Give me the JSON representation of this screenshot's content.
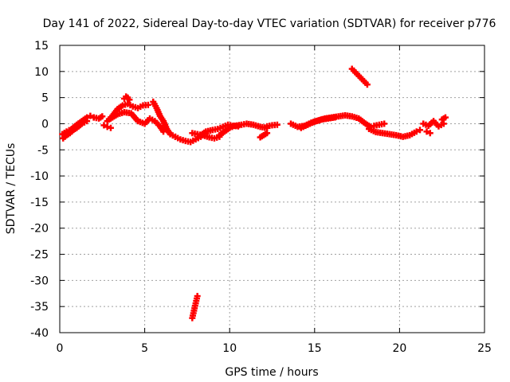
{
  "chart_data": {
    "type": "scatter",
    "title": "Day 141 of 2022, Sidereal Day-to-day VTEC variation (SDTVAR) for receiver p776",
    "xlabel": "GPS time / hours",
    "ylabel": "SDTVAR / TECUs",
    "xlim": [
      0,
      25
    ],
    "ylim": [
      -40,
      15
    ],
    "xticks": [
      0,
      5,
      10,
      15,
      20,
      25
    ],
    "yticks": [
      -40,
      -35,
      -30,
      -25,
      -20,
      -15,
      -10,
      -5,
      0,
      5,
      10,
      15
    ],
    "grid": true,
    "series": [
      {
        "name": "SDTVAR",
        "color": "#ff0000",
        "marker": "plus",
        "segments": [
          {
            "x": [
              0.15,
              0.4,
              0.7,
              1.0,
              1.3,
              1.6,
              1.8,
              2.0
            ],
            "y": [
              -2.0,
              -1.5,
              -1.0,
              -0.2,
              0.5,
              1.2,
              1.5,
              1.2
            ]
          },
          {
            "x": [
              0.2,
              0.4,
              0.6,
              0.8,
              1.0,
              1.3,
              1.6
            ],
            "y": [
              -2.8,
              -2.2,
              -1.8,
              -1.2,
              -0.8,
              0.0,
              0.5
            ]
          },
          {
            "x": [
              2.0,
              2.3,
              2.5
            ],
            "y": [
              1.2,
              1.0,
              1.4
            ]
          },
          {
            "x": [
              2.6,
              2.8,
              3.0
            ],
            "y": [
              -0.3,
              -0.6,
              -0.8
            ]
          },
          {
            "x": [
              2.8,
              3.1,
              3.4,
              3.7,
              4.0,
              4.3,
              4.6,
              4.9,
              5.2
            ],
            "y": [
              0.5,
              1.5,
              2.8,
              3.5,
              3.8,
              3.3,
              3.0,
              3.5,
              3.6
            ]
          },
          {
            "x": [
              3.0,
              3.4,
              3.8,
              4.2,
              4.6,
              5.0,
              5.3,
              5.6,
              5.9,
              6.1
            ],
            "y": [
              1.0,
              1.8,
              2.2,
              2.0,
              0.5,
              0.0,
              1.0,
              0.5,
              -0.5,
              -1.5
            ]
          },
          {
            "x": [
              3.8,
              3.9,
              4.0,
              4.1
            ],
            "y": [
              4.8,
              5.2,
              5.0,
              4.6
            ]
          },
          {
            "x": [
              5.5,
              5.7,
              5.9,
              6.1,
              6.3,
              6.5,
              6.8
            ],
            "y": [
              4.2,
              3.0,
              1.5,
              0.5,
              -1.0,
              -2.0,
              -2.5
            ]
          },
          {
            "x": [
              6.8,
              7.1,
              7.4,
              7.7,
              8.0,
              8.3
            ],
            "y": [
              -2.5,
              -3.0,
              -3.3,
              -3.5,
              -3.0,
              -2.5
            ]
          },
          {
            "x": [
              7.8,
              8.1,
              8.4,
              8.8,
              9.1,
              9.4
            ],
            "y": [
              -1.8,
              -2.0,
              -2.2,
              -2.6,
              -2.8,
              -2.5
            ]
          },
          {
            "x": [
              8.3,
              8.6,
              9.0,
              9.3,
              9.6,
              9.9,
              10.2,
              10.5
            ],
            "y": [
              -2.2,
              -1.5,
              -1.2,
              -1.0,
              -0.6,
              -0.2,
              -0.4,
              -0.5
            ]
          },
          {
            "x": [
              9.4,
              9.7,
              10.0,
              10.3,
              10.7,
              11.0,
              11.4,
              11.8,
              12.2
            ],
            "y": [
              -2.2,
              -1.5,
              -0.8,
              -0.4,
              -0.2,
              0.0,
              -0.2,
              -0.6,
              -0.8
            ]
          },
          {
            "x": [
              12.2,
              12.5,
              12.8
            ],
            "y": [
              -0.5,
              -0.3,
              -0.2
            ]
          },
          {
            "x": [
              11.8,
              12.0,
              12.2
            ],
            "y": [
              -2.6,
              -2.2,
              -1.8
            ]
          },
          {
            "x": [
              13.6,
              14.0,
              14.4,
              14.8,
              15.2,
              15.6,
              16.0,
              16.4,
              16.8,
              17.2,
              17.6,
              18.0,
              18.3
            ],
            "y": [
              0.0,
              -0.6,
              -0.4,
              0.2,
              0.6,
              1.0,
              1.2,
              1.4,
              1.6,
              1.4,
              1.0,
              0.0,
              -0.6
            ]
          },
          {
            "x": [
              14.2,
              14.6,
              15.0,
              15.4,
              15.8,
              16.2
            ],
            "y": [
              -0.8,
              -0.2,
              0.4,
              0.8,
              1.0,
              1.2
            ]
          },
          {
            "x": [
              18.5,
              18.8,
              19.1
            ],
            "y": [
              -0.4,
              -0.2,
              0.0
            ]
          },
          {
            "x": [
              18.2,
              18.6,
              19.0,
              19.4,
              19.8,
              20.2,
              20.6,
              21.0,
              21.2
            ],
            "y": [
              -1.0,
              -1.6,
              -1.8,
              -2.0,
              -2.2,
              -2.5,
              -2.2,
              -1.5,
              -1.2
            ]
          },
          {
            "x": [
              21.4,
              21.7,
              22.0,
              22.3,
              22.6
            ],
            "y": [
              0.0,
              -0.4,
              0.5,
              -0.5,
              0.0
            ]
          },
          {
            "x": [
              22.5,
              22.6,
              22.7
            ],
            "y": [
              0.8,
              1.0,
              1.2
            ]
          },
          {
            "x": [
              21.6,
              21.8
            ],
            "y": [
              -1.5,
              -1.8
            ]
          },
          {
            "x": [
              17.2,
              17.5,
              17.8,
              18.1
            ],
            "y": [
              10.5,
              9.5,
              8.5,
              7.5
            ]
          },
          {
            "x": [
              7.8,
              7.9,
              8.0,
              8.1
            ],
            "y": [
              -37.2,
              -35.8,
              -34.4,
              -33.0
            ]
          }
        ]
      }
    ]
  }
}
